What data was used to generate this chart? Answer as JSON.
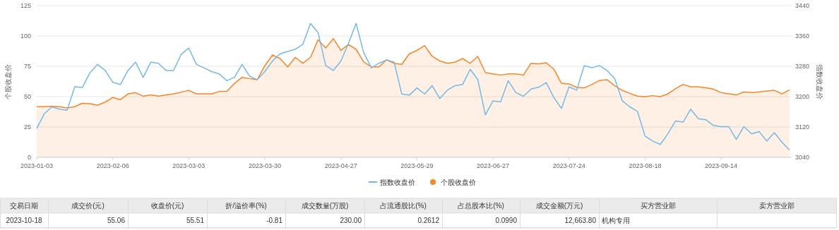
{
  "chart_data": {
    "type": "line",
    "categories": [
      "2023-01-03",
      null,
      null,
      null,
      null,
      null,
      null,
      null,
      null,
      null,
      "2023-02-06",
      null,
      null,
      null,
      null,
      null,
      null,
      null,
      null,
      null,
      "2023-03-03",
      null,
      null,
      null,
      null,
      null,
      null,
      null,
      null,
      null,
      "2023-03-30",
      null,
      null,
      null,
      null,
      null,
      null,
      null,
      null,
      null,
      "2023-04-27",
      null,
      null,
      null,
      null,
      null,
      null,
      null,
      null,
      null,
      "2023-05-29",
      null,
      null,
      null,
      null,
      null,
      null,
      null,
      null,
      null,
      "2023-06-27",
      null,
      null,
      null,
      null,
      null,
      null,
      null,
      null,
      null,
      "2023-07-24",
      null,
      null,
      null,
      null,
      null,
      null,
      null,
      null,
      null,
      "2023-08-18",
      null,
      null,
      null,
      null,
      null,
      null,
      null,
      null,
      null,
      "2023-09-14",
      null,
      null,
      null,
      null,
      null,
      null,
      null,
      null,
      null
    ],
    "series": [
      {
        "name": "指数收盘价",
        "type": "line",
        "axis": "y2",
        "color": "#74b9e7",
        "values": [
          3116,
          3155,
          3173,
          3167,
          3164,
          3226,
          3224,
          3263,
          3285,
          3269,
          3238,
          3232,
          3269,
          3291,
          3251,
          3291,
          3288,
          3269,
          3269,
          3312,
          3328,
          3285,
          3276,
          3266,
          3260,
          3242,
          3251,
          3285,
          3254,
          3245,
          3266,
          3294,
          3313,
          3319,
          3325,
          3338,
          3393,
          3369,
          3282,
          3269,
          3294,
          3341,
          3393,
          3316,
          3276,
          3288,
          3297,
          3291,
          3207,
          3204,
          3223,
          3207,
          3229,
          3195,
          3217,
          3229,
          3232,
          3272,
          3245,
          3152,
          3189,
          3186,
          3242,
          3211,
          3201,
          3220,
          3225,
          3237,
          3198,
          3169,
          3226,
          3217,
          3282,
          3276,
          3282,
          3269,
          3248,
          3189,
          3173,
          3161,
          3096,
          3083,
          3074,
          3102,
          3136,
          3133,
          3167,
          3142,
          3139,
          3124,
          3121,
          3121,
          3087,
          3121,
          3102,
          3108,
          3083,
          3105,
          3080,
          3059
        ]
      },
      {
        "name": "个股收盘价",
        "type": "area",
        "color": "#f5862a",
        "values": [
          41.7,
          41.7,
          42.2,
          41.7,
          40.7,
          41.7,
          44.6,
          44.2,
          43.0,
          45.5,
          49.4,
          47.5,
          52.3,
          53.3,
          50.4,
          51.4,
          50.4,
          51.4,
          52.3,
          53.7,
          55.2,
          52.3,
          52.3,
          52.3,
          54.3,
          54.3,
          61.0,
          65.9,
          64.9,
          64.0,
          75.6,
          84.3,
          81.4,
          74.6,
          82.4,
          77.5,
          82.4,
          96.9,
          90.1,
          97.9,
          88.2,
          93.0,
          89.1,
          78.5,
          74.6,
          74.6,
          80.4,
          77.5,
          76.6,
          85.3,
          88.2,
          92.1,
          83.3,
          79.5,
          77.5,
          78.5,
          81.4,
          77.5,
          83.3,
          69.8,
          68.8,
          67.8,
          68.8,
          68.8,
          67.8,
          77.5,
          77.0,
          77.9,
          72.7,
          61.0,
          60.5,
          57.7,
          57.2,
          60.1,
          63.4,
          64.0,
          59.1,
          55.2,
          52.7,
          50.4,
          50.0,
          50.8,
          50.0,
          52.3,
          56.6,
          60.1,
          58.1,
          58.1,
          57.2,
          56.2,
          53.3,
          52.3,
          51.4,
          53.9,
          53.3,
          53.9,
          54.7,
          55.2,
          52.3,
          55.6
        ]
      }
    ],
    "ylabel": "个股收盘价",
    "y2label": "指数收盘价",
    "ylim": [
      0,
      125
    ],
    "yticks": [
      0,
      25,
      50,
      75,
      100,
      125
    ],
    "y2lim": [
      3040,
      3440
    ],
    "y2ticks": [
      3040,
      3120,
      3200,
      3280,
      3360,
      3440
    ],
    "grid": "y",
    "legend": "bottom",
    "marker": "none",
    "annotations": [
      "交易日期",
      "成交价(元)",
      "收盘价(元)",
      "折/溢价率(%)",
      "成交数量(万股)",
      "占流通股比(%)",
      "占总股本比(%)",
      "成交金额(万元)",
      "买方营业部",
      "卖方营业部",
      "2023-10-18",
      "55.06",
      "55.51",
      "-0.81",
      "230.00",
      "0.2612",
      "0.0990",
      "12,663.80",
      "机构专用"
    ]
  }
}
